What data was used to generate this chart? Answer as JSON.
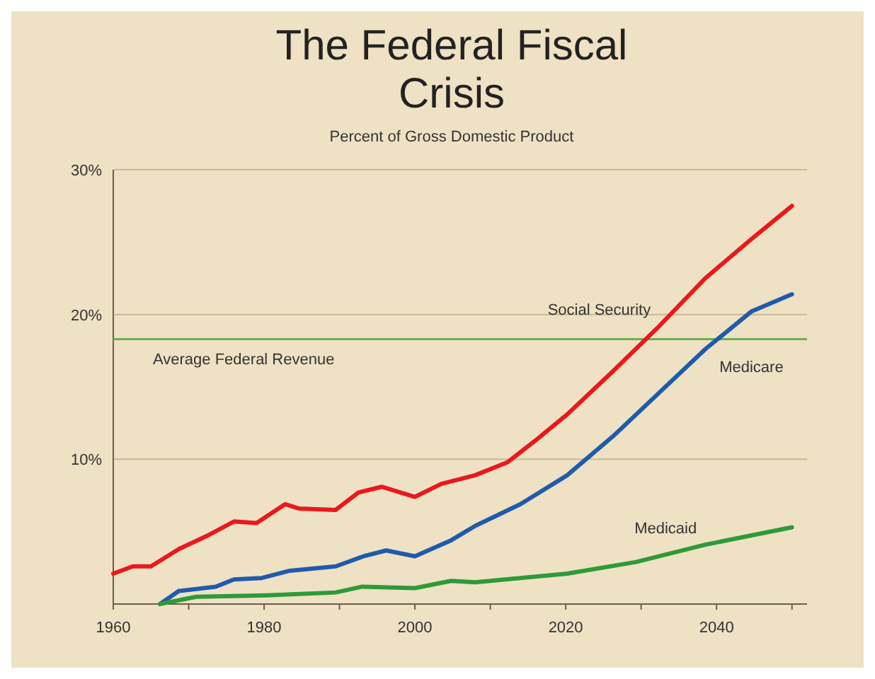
{
  "chart_data": {
    "type": "line",
    "title": "The Federal Fiscal Crisis",
    "subtitle": "Percent of Gross Domestic Product",
    "xlim": [
      1960,
      2052
    ],
    "xticks": [
      1960,
      {
        "value": 1970,
        "label": null
      },
      1980,
      {
        "value": 1990,
        "label": null
      },
      2000,
      {
        "value": 2010,
        "label": null
      },
      2020,
      {
        "value": 2030,
        "label": null
      },
      2040,
      {
        "value": 2050,
        "label": null
      }
    ],
    "ylim": [
      0,
      30
    ],
    "yticks": [
      {
        "value": 0,
        "label": null
      },
      {
        "value": 10,
        "label": "10%"
      },
      {
        "value": 20,
        "label": "20%"
      },
      {
        "value": 30,
        "label": "30%"
      }
    ],
    "grid": "y",
    "marker": "none",
    "line_style": "solid",
    "ref_lines": [
      {
        "axis": "y",
        "value": 18.3,
        "label": "Average Federal Revenue",
        "color": "#6ab04c"
      }
    ],
    "series": [
      {
        "name": "Social Security",
        "color": "#e8191c",
        "x": [
          1960,
          1962.6,
          1965,
          1968.7,
          1972.4,
          1976,
          1979,
          1982.8,
          1984.6,
          1989.5,
          1992.5,
          1995.6,
          2000,
          2003.5,
          2008,
          2012.3,
          2016,
          2020.2,
          2026.3,
          2032.4,
          2038.5,
          2044.6,
          2050
        ],
        "values": [
          2.1,
          2.6,
          2.6,
          3.8,
          4.7,
          5.7,
          5.6,
          6.9,
          6.6,
          6.5,
          7.7,
          8.1,
          7.4,
          8.3,
          8.9,
          9.8,
          11.3,
          13.1,
          16.1,
          19.2,
          22.5,
          25.2,
          27.5
        ]
      },
      {
        "name": "Medicare",
        "color": "#1f5bab",
        "x": [
          1966.2,
          1968.7,
          1973.6,
          1976,
          1979.7,
          1983.4,
          1989.5,
          1993.2,
          1996.2,
          2000,
          2004.8,
          2008,
          2014,
          2020.2,
          2026.3,
          2032.4,
          2038.5,
          2044.6,
          2050
        ],
        "values": [
          0,
          0.9,
          1.2,
          1.7,
          1.8,
          2.3,
          2.6,
          3.3,
          3.7,
          3.3,
          4.4,
          5.4,
          6.9,
          8.9,
          11.6,
          14.6,
          17.6,
          20.2,
          21.4
        ]
      },
      {
        "name": "Medicaid",
        "color": "#2e9a3a",
        "x": [
          1966.2,
          1971,
          1980.3,
          1989.5,
          1993,
          2000,
          2004.8,
          2008,
          2020.2,
          2029.3,
          2038.5,
          2050
        ],
        "values": [
          0,
          0.5,
          0.6,
          0.8,
          1.2,
          1.1,
          1.6,
          1.5,
          2.1,
          2.9,
          4.1,
          5.3
        ]
      }
    ]
  }
}
